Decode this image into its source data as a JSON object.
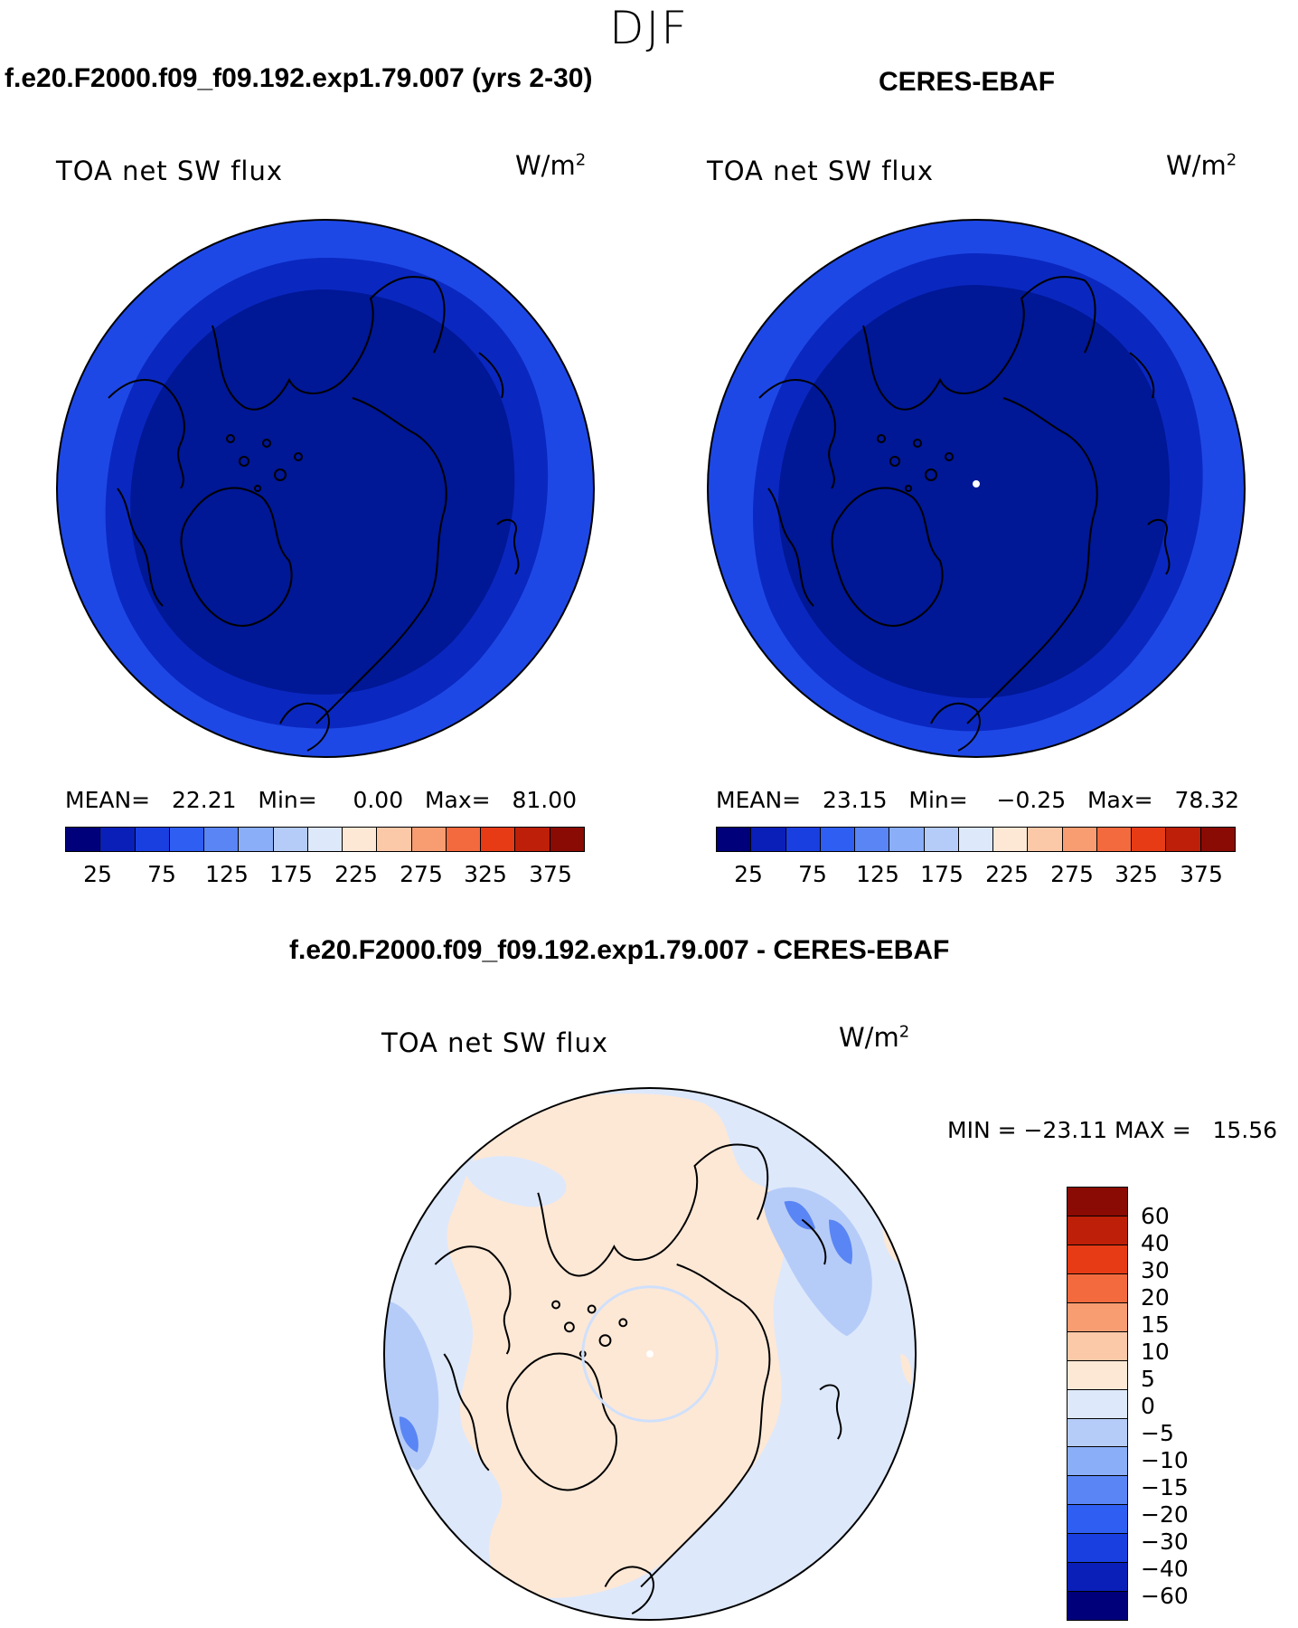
{
  "figure": {
    "season": "DJF"
  },
  "panel_left": {
    "title": "f.e20.F2000.f09_f09.192.exp1.79.007 (yrs 2-30)",
    "variable": "TOA net SW flux",
    "unit": "W/m",
    "unit_exp": "2",
    "stats": {
      "mean_label": "MEAN=",
      "mean": "22.21",
      "min_label": "Min=",
      "min": "0.00",
      "max_label": "Max=",
      "max": "81.00"
    }
  },
  "panel_right": {
    "title": "CERES-EBAF",
    "variable": "TOA net SW flux",
    "unit": "W/m",
    "unit_exp": "2",
    "stats": {
      "mean_label": "MEAN=",
      "mean": "23.15",
      "min_label": "Min=",
      "min": "−0.25",
      "max_label": "Max=",
      "max": "78.32"
    }
  },
  "panel_diff": {
    "title": "f.e20.F2000.f09_f09.192.exp1.79.007 - CERES-EBAF",
    "variable": "TOA net SW flux",
    "unit": "W/m",
    "unit_exp": "2",
    "range_text": "MIN = −23.11 MAX =   15.56"
  },
  "colorbar_abs": {
    "colors": [
      "#00007a",
      "#0a1fb8",
      "#1a3fe0",
      "#2f5ff2",
      "#5a85f5",
      "#8aaef7",
      "#b6ccf8",
      "#dde8fb",
      "#fde8d6",
      "#fbc8a8",
      "#f89c72",
      "#f36a3e",
      "#e63b15",
      "#bd1f08",
      "#8a0a04"
    ],
    "ticks": [
      "25",
      "75",
      "125",
      "175",
      "225",
      "275",
      "325",
      "375"
    ]
  },
  "colorbar_diff": {
    "colors": [
      "#8a0a04",
      "#bd1f08",
      "#e63b15",
      "#f36a3e",
      "#f89c72",
      "#fbc8a8",
      "#fde8d6",
      "#dde8fb",
      "#b6ccf8",
      "#8aaef7",
      "#5a85f5",
      "#2f5ff2",
      "#1a3fe0",
      "#0a1fb8",
      "#00007a"
    ],
    "ticks": [
      "60",
      "40",
      "30",
      "20",
      "15",
      "10",
      "5",
      "0",
      "−5",
      "−10",
      "−15",
      "−20",
      "−30",
      "−40",
      "−60"
    ]
  },
  "map_colors": {
    "abs_outer": "#1e48e6",
    "abs_mid": "#0a28c0",
    "abs_inner": "#001796",
    "diff_pos": "#fde8d6",
    "diff_neg": "#dde8fb",
    "diff_neg2": "#b6ccf8",
    "diff_neg3": "#5a85f5",
    "coast": "#000000"
  }
}
